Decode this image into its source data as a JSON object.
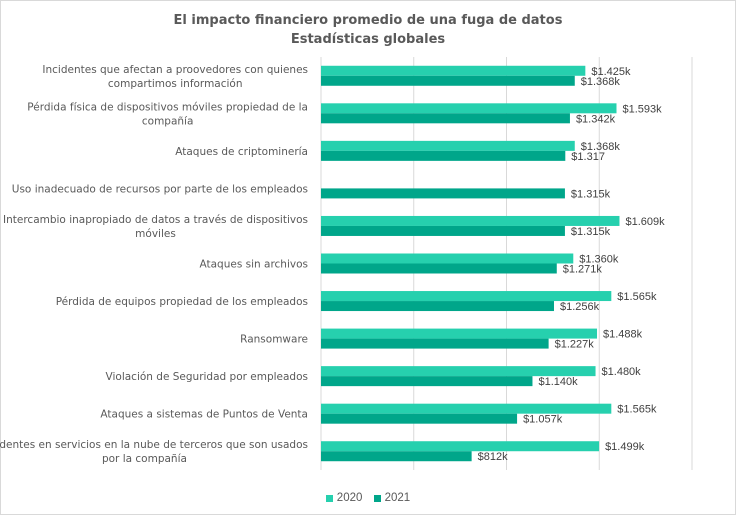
{
  "chart_data": {
    "type": "bar",
    "orientation": "horizontal",
    "title": "El impacto financiero promedio de una  fuga de datos",
    "subtitle": "Estadísticas globales",
    "xlabel": "",
    "ylabel": "",
    "xlim": [
      0,
      2000
    ],
    "grid": true,
    "legend_position": "bottom",
    "categories": [
      "Incidentes que afectan a proovedores con quienes compartimos información",
      "Pérdida física de dispositivos móviles propiedad de la compañía",
      "Ataques de criptominería",
      "Uso inadecuado de recursos por parte de los empleados",
      "Intercambio inapropiado de datos a través de dispositivos móviles",
      "Ataques sin archivos",
      "Pérdida de equipos propiedad de los empleados",
      "Ransomware",
      "Violación de Seguridad por empleados",
      "Ataques a sistemas de Puntos de Venta",
      "Incidentes en servicios en la nube de terceros que son usados por la compañía"
    ],
    "category_lines": [
      [
        "Incidentes que afectan a proovedores con quienes",
        "compartimos información"
      ],
      [
        "Pérdida física de dispositivos móviles propiedad de la",
        "compañía"
      ],
      [
        "Ataques de criptominería"
      ],
      [
        "Uso inadecuado de recursos por parte de los empleados"
      ],
      [
        "Intercambio inapropiado de datos a través de dispositivos",
        "móviles"
      ],
      [
        "Ataques sin archivos"
      ],
      [
        "Pérdida de equipos propiedad de los empleados"
      ],
      [
        "Ransomware"
      ],
      [
        "Violación de Seguridad por empleados"
      ],
      [
        "Ataques a sistemas de Puntos de Venta"
      ],
      [
        "Incidentes en servicios en la nube de terceros que son usados",
        "por la compañía"
      ]
    ],
    "series": [
      {
        "name": "2020",
        "color": "#26d0ae",
        "values": [
          1425,
          1593,
          1368,
          null,
          1609,
          1360,
          1565,
          1488,
          1480,
          1565,
          1499
        ],
        "labels": [
          "$1.425k",
          "$1.593k",
          "$1.368k",
          null,
          "$1.609k",
          "$1.360k",
          "$1.565k",
          "$1.488k",
          "$1.480k",
          "$1.565k",
          "$1.499k"
        ]
      },
      {
        "name": "2021",
        "color": "#00a68a",
        "values": [
          1368,
          1342,
          1317,
          1315,
          1315,
          1271,
          1256,
          1227,
          1140,
          1057,
          812
        ],
        "labels": [
          "$1.368k",
          "$1.342k",
          "$1.317",
          "$1.315k",
          "$1.315k",
          "$1.271k",
          "$1.256k",
          "$1.227k",
          "$1.140k",
          "$1.057k",
          "$812k"
        ]
      }
    ],
    "gridline_values": [
      0,
      500,
      1000,
      1500,
      2000
    ]
  }
}
